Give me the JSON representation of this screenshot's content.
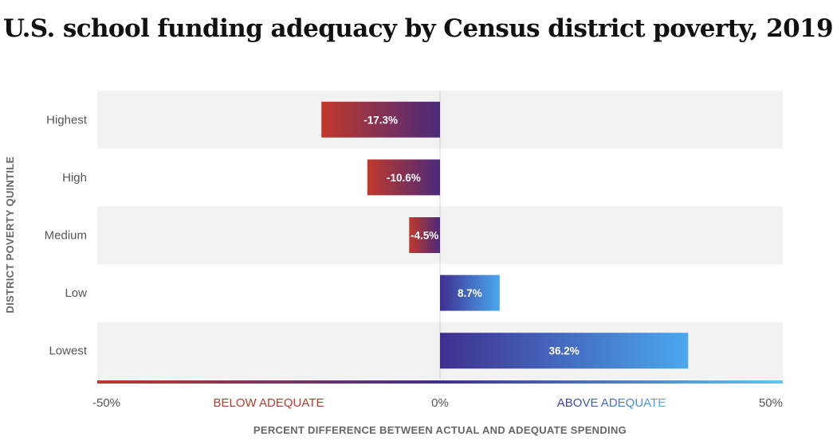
{
  "title": "U.S. school funding adequacy by Census district poverty, 2019",
  "chart_data": {
    "type": "bar",
    "orientation": "horizontal",
    "title": "U.S. school funding adequacy by Census district poverty, 2019",
    "categories": [
      "Highest",
      "High",
      "Medium",
      "Low",
      "Lowest"
    ],
    "values": [
      -17.3,
      -10.6,
      -4.5,
      8.7,
      36.2
    ],
    "value_labels": [
      "-17.3%",
      "-10.6%",
      "-4.5%",
      "8.7%",
      "36.2%"
    ],
    "ylabel": "DISTRICT POVERTY QUINTILE",
    "xlabel": "PERCENT DIFFERENCE BETWEEN ACTUAL AND ADEQUATE SPENDING",
    "xlim": [
      -50,
      50
    ],
    "x_ticks": [
      -50,
      0,
      50
    ],
    "x_tick_labels": [
      "-50%",
      "0%",
      "50%"
    ],
    "negative_label": "BELOW ADEQUATE",
    "positive_label": "ABOVE ADEQUATE",
    "grid": false,
    "colors": {
      "negative_start": "#c0392b",
      "negative_end": "#4a2a7a",
      "positive_start": "#3f2f8f",
      "positive_end": "#4aa8f0",
      "band": "#f2f2f2",
      "below_label": "#b63a2e",
      "above_label_start": "#3e3a9e",
      "above_label_end": "#4aaef0"
    }
  }
}
